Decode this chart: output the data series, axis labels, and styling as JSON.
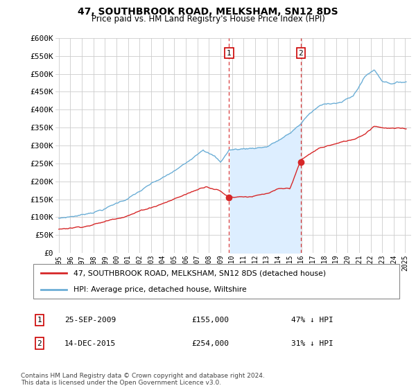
{
  "title": "47, SOUTHBROOK ROAD, MELKSHAM, SN12 8DS",
  "subtitle": "Price paid vs. HM Land Registry's House Price Index (HPI)",
  "legend_line1": "47, SOUTHBROOK ROAD, MELKSHAM, SN12 8DS (detached house)",
  "legend_line2": "HPI: Average price, detached house, Wiltshire",
  "footnote": "Contains HM Land Registry data © Crown copyright and database right 2024.\nThis data is licensed under the Open Government Licence v3.0.",
  "transaction1_date": "25-SEP-2009",
  "transaction1_price": "£155,000",
  "transaction1_hpi": "47% ↓ HPI",
  "transaction2_date": "14-DEC-2015",
  "transaction2_price": "£254,000",
  "transaction2_hpi": "31% ↓ HPI",
  "hpi_color": "#6baed6",
  "price_color": "#d62728",
  "shade_color": "#ddeeff",
  "ylim": [
    0,
    600000
  ],
  "yticks": [
    0,
    50000,
    100000,
    150000,
    200000,
    250000,
    300000,
    350000,
    400000,
    450000,
    500000,
    550000,
    600000
  ],
  "ylabel_fmt": [
    "£0",
    "£50K",
    "£100K",
    "£150K",
    "£200K",
    "£250K",
    "£300K",
    "£350K",
    "£400K",
    "£450K",
    "£500K",
    "£550K",
    "£600K"
  ],
  "sale1_x": 2009.75,
  "sale1_y": 155000,
  "sale2_x": 2015.96,
  "sale2_y": 254000,
  "xtick_years": [
    1995,
    1996,
    1997,
    1998,
    1999,
    2000,
    2001,
    2002,
    2003,
    2004,
    2005,
    2006,
    2007,
    2008,
    2009,
    2010,
    2011,
    2012,
    2013,
    2014,
    2015,
    2016,
    2017,
    2018,
    2019,
    2020,
    2021,
    2022,
    2023,
    2024,
    2025
  ],
  "xmin": 1994.7,
  "xmax": 2025.5
}
